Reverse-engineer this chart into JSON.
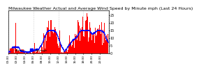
{
  "title": "Milwaukee Weather Actual and Average Wind Speed by Minute mph (Last 24 Hours)",
  "title_fontsize": 4.5,
  "background_color": "#ffffff",
  "bar_color": "#ff0000",
  "line_color": "#0000ff",
  "ylim": [
    0,
    28
  ],
  "n_points": 1440,
  "yticks": [
    0,
    5,
    10,
    15,
    20,
    25
  ],
  "ytick_fontsize": 3.5,
  "xtick_fontsize": 3.0,
  "spine_color": "#000000",
  "grid_color": "#aaaaaa",
  "vgrid_interval": 360,
  "bar_width": 1.0,
  "line_width": 0.5,
  "avg_window": 120,
  "avg_clip": 15
}
